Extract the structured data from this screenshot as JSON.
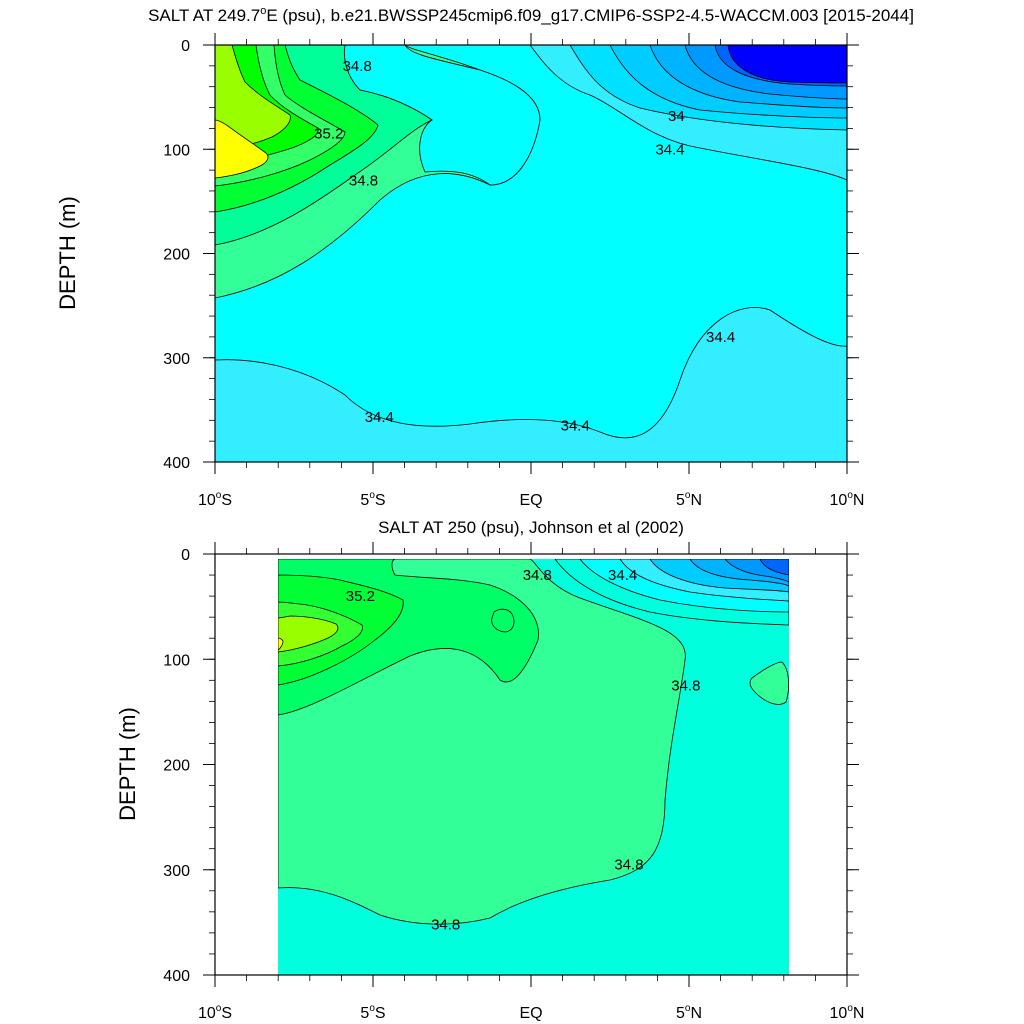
{
  "chart_data": [
    {
      "type": "contour",
      "title": "SALT AT 249.7°E (psu), b.e21.BWSSP245cmip6.f09_g17.CMIP6-SSP2-4.5-WACCM.003 [2015-2044]",
      "title_main": "SALT AT 249.7",
      "title_sup": "o",
      "title_rest": "E (psu), b.e21.BWSSP245cmip6.f09_g17.CMIP6-SSP2-4.5-WACCM.003 [2015-2044]",
      "ylabel": "DEPTH (m)",
      "xlim": [
        -10,
        10
      ],
      "ylim": [
        0,
        400
      ],
      "y_reversed": true,
      "y_ticks": [
        "0",
        "100",
        "200",
        "300",
        "400"
      ],
      "x_ticks": [
        {
          "value": -10,
          "num": "10",
          "deg": "o",
          "hemi": "S"
        },
        {
          "value": -5,
          "num": "5",
          "deg": "o",
          "hemi": "S"
        },
        {
          "value": 0,
          "num": "EQ",
          "deg": "",
          "hemi": ""
        },
        {
          "value": 5,
          "num": "5",
          "deg": "o",
          "hemi": "N"
        },
        {
          "value": 10,
          "num": "10",
          "deg": "o",
          "hemi": "N"
        }
      ],
      "contour_labels": [
        {
          "text": "34.8",
          "lon": -5.5,
          "depth": 20
        },
        {
          "text": "35.2",
          "lon": -6.4,
          "depth": 85
        },
        {
          "text": "34.8",
          "lon": -5.3,
          "depth": 130
        },
        {
          "text": "34",
          "lon": 4.6,
          "depth": 68
        },
        {
          "text": "34.4",
          "lon": 4.4,
          "depth": 100
        },
        {
          "text": "34.4",
          "lon": 6.0,
          "depth": 280
        },
        {
          "text": "34.4",
          "lon": -4.8,
          "depth": 357
        },
        {
          "text": "34.4",
          "lon": 1.4,
          "depth": 365
        }
      ],
      "colors": {
        "yellow": "#ffff00",
        "lime": "#99ff00",
        "green": "#00ff33",
        "mint": "#33ff99",
        "aqua": "#00ffdd",
        "cyan": "#00ffff",
        "lightblue": "#33eeff",
        "sky": "#00ccff",
        "azure": "#0099ff",
        "blue": "#0066ff",
        "deepblue": "#0000ff"
      }
    },
    {
      "type": "contour",
      "title": "SALT AT 250 (psu), Johnson et al (2002)",
      "ylabel": "DEPTH (m)",
      "xlim": [
        -10,
        10
      ],
      "ylim": [
        0,
        400
      ],
      "y_reversed": true,
      "y_ticks": [
        "0",
        "100",
        "200",
        "300",
        "400"
      ],
      "x_ticks": [
        {
          "value": -10,
          "num": "10",
          "deg": "o",
          "hemi": "S"
        },
        {
          "value": -5,
          "num": "5",
          "deg": "o",
          "hemi": "S"
        },
        {
          "value": 0,
          "num": "EQ",
          "deg": "",
          "hemi": ""
        },
        {
          "value": 5,
          "num": "5",
          "deg": "o",
          "hemi": "N"
        },
        {
          "value": 10,
          "num": "10",
          "deg": "o",
          "hemi": "N"
        }
      ],
      "contour_labels": [
        {
          "text": "35.2",
          "lon": -5.4,
          "depth": 40
        },
        {
          "text": "34.8",
          "lon": 0.2,
          "depth": 20
        },
        {
          "text": "34.4",
          "lon": 2.9,
          "depth": 20
        },
        {
          "text": "34.8",
          "lon": 4.9,
          "depth": 125
        },
        {
          "text": "34.8",
          "lon": 3.1,
          "depth": 295
        },
        {
          "text": "34.8",
          "lon": -2.7,
          "depth": 352
        }
      ]
    }
  ]
}
